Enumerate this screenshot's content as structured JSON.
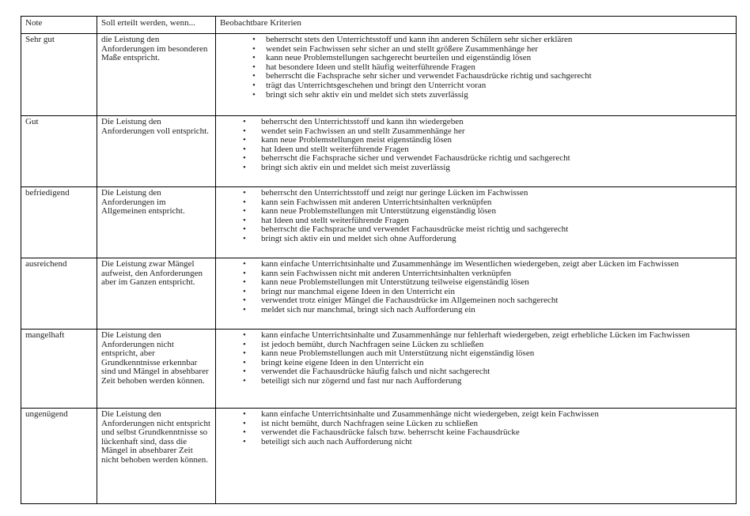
{
  "header": {
    "note": "Note",
    "condition": "Soll erteilt werden, wenn...",
    "criteria": "Beobachtbare Kriterien"
  },
  "rows": [
    {
      "grade": "Sehr gut",
      "condition": "die Leistung den Anforderungen im besonderen Maße entspricht.",
      "height": 104,
      "criteria": [
        "beherrscht stets den Unterrichtsstoff und kann ihn anderen Schülern sehr sicher erklären",
        "wendet sein Fachwissen sehr sicher an und stellt größere Zusammenhänge her",
        "kann neue Problemstellungen sachgerecht beurteilen und eigenständig lösen",
        "hat besondere Ideen und stellt häufig weiterführende Fragen",
        "beherrscht die Fachsprache sehr sicher und verwendet Fachausdrücke richtig und sachgerecht",
        "trägt das Unterrichtsgeschehen und bringt den Unterricht voran",
        "bringt sich sehr aktiv ein und meldet sich stets zuverlässig"
      ]
    },
    {
      "grade": "Gut",
      "condition": "Die Leistung den Anforderungen voll entspricht.",
      "criteria": [
        "beherrscht den Unterrichtsstoff und kann ihn wiedergeben",
        "wendet sein Fachwissen an und stellt Zusammenhänge her",
        "kann neue Problemstellungen meist eigenständig lösen",
        "hat Ideen und stellt weiterführende Fragen",
        "beherrscht die Fachsprache sicher und verwendet Fachausdrücke richtig und sachgerecht",
        "bringt sich aktiv ein und meldet sich meist zuverlässig"
      ]
    },
    {
      "grade": "befriedigend",
      "condition": "Die Leistung den Anforderungen im Allgemeinen entspricht.",
      "criteria": [
        "beherrscht den Unterrichtsstoff und zeigt nur geringe Lücken im Fachwissen",
        "kann sein Fachwissen mit anderen Unterrichtsinhalten verknüpfen",
        "kann neue Problemstellungen mit Unterstützung eigenständig lösen",
        "hat Ideen und stellt weiterführende Fragen",
        "beherrscht die Fachsprache und verwendet Fachausdrücke meist richtig und sachgerecht",
        "bringt sich aktiv ein und meldet sich ohne Aufforderung"
      ]
    },
    {
      "grade": "ausreichend",
      "condition": "Die Leistung zwar Mängel aufweist, den Anforderungen aber im Ganzen entspricht.",
      "criteria": [
        "kann einfache Unterrichtsinhalte und Zusammenhänge im Wesentlichen wiedergeben, zeigt aber Lücken im Fachwissen",
        "kann sein Fachwissen nicht mit anderen Unterrichtsinhalten verknüpfen",
        "kann neue Problemstellungen mit Unterstützung teilweise eigenständig lösen",
        "bringt nur manchmal eigene Ideen in den Unterricht ein",
        "verwendet trotz einiger Mängel die Fachausdrücke im Allgemeinen noch sachgerecht",
        "meldet sich nur manchmal, bringt sich nach Aufforderung ein"
      ]
    },
    {
      "grade": "mangelhaft",
      "condition": "Die Leistung den Anforderungen nicht entspricht, aber Grundkenntnisse erkennbar sind und Mängel in absehbarer Zeit behoben werden können.",
      "criteria": [
        "kann einfache Unterrichtsinhalte und Zusammenhänge nur fehlerhaft wiedergeben, zeigt erhebliche Lücken im Fachwissen",
        "ist jedoch bemüht, durch Nachfragen seine Lücken zu schließen",
        "kann neue Problemstellungen auch mit Unterstützung nicht eigenständig lösen",
        "bringt keine eigene Ideen in den Unterricht ein",
        "verwendet die Fachausdrücke häufig falsch und nicht sachgerecht",
        "beteiligt sich nur zögernd und fast nur nach Aufforderung"
      ]
    },
    {
      "grade": "ungenügend",
      "condition": "Die Leistung den Anforderungen nicht entspricht und selbst Grundkenntnisse so lückenhaft sind, dass die Mängel in absehbarer Zeit nicht behoben werden können.",
      "criteria": [
        "kann einfache Unterrichtsinhalte und Zusammenhänge nicht wiedergeben, zeigt kein Fachwissen",
        "ist nicht bemüht, durch Nachfragen seine Lücken zu schließen",
        "verwendet die Fachausdrücke falsch bzw. beherrscht keine Fachausdrücke",
        "beteiligt sich auch nach Aufforderung nicht"
      ]
    }
  ],
  "bullet": "•"
}
